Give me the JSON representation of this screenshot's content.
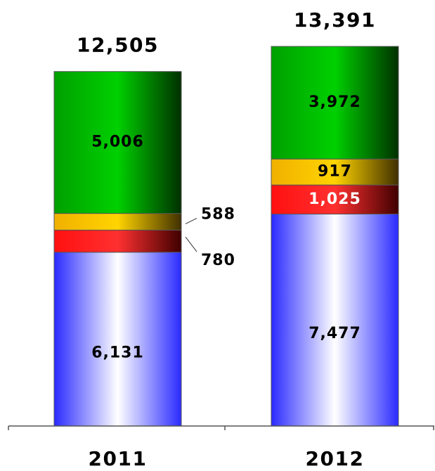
{
  "chart_data": {
    "type": "bar",
    "stacked": true,
    "categories": [
      "2011",
      "2012"
    ],
    "totals": [
      "12,505",
      "13,391"
    ],
    "series": [
      {
        "values": [
          6131,
          7477
        ],
        "labels": [
          "6,131",
          "7,477"
        ],
        "color": "#1a1aff",
        "label_color": "#000000"
      },
      {
        "values": [
          780,
          1025
        ],
        "labels": [
          "780",
          "1,025"
        ],
        "color": "#e00000",
        "label_color": "#ffffff"
      },
      {
        "values": [
          588,
          917
        ],
        "labels": [
          "588",
          "917"
        ],
        "color": "#f0b800",
        "label_color": "#000000"
      },
      {
        "values": [
          5006,
          3972
        ],
        "labels": [
          "5,006",
          "3,972"
        ],
        "color": "#00b000",
        "label_color": "#000000"
      }
    ],
    "outside_labels": [
      {
        "category_index": 0,
        "series_index": 2
      },
      {
        "category_index": 0,
        "series_index": 1
      }
    ],
    "title": "",
    "xlabel": "",
    "ylabel": "",
    "ylim": [
      0,
      13391
    ],
    "grid": false,
    "legend": "none"
  }
}
